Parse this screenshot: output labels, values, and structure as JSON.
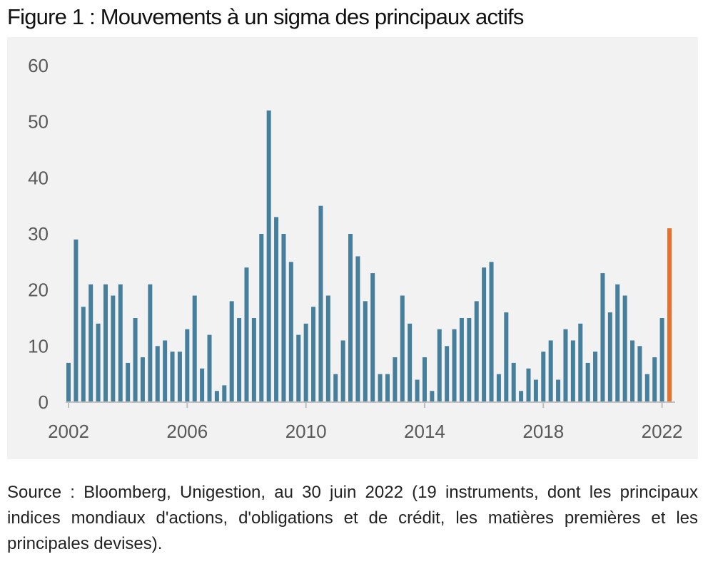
{
  "title": "Figure 1 : Mouvements à un sigma des principaux actifs",
  "source": "Source : Bloomberg, Unigestion, au 30 juin 2022 (19 instruments, dont les principaux indices mondiaux d'actions, d'obligations et de crédit, les matières premières et les principales devises).",
  "chart_data": {
    "type": "bar",
    "title": "Figure 1 : Mouvements à un sigma des principaux actifs",
    "xlabel": "",
    "ylabel": "",
    "ylim": [
      0,
      60
    ],
    "yticks": [
      0,
      10,
      20,
      30,
      40,
      50,
      60
    ],
    "xticks": [
      "2002",
      "2006",
      "2010",
      "2014",
      "2018",
      "2022"
    ],
    "xlim": [
      "2002-Q1",
      "2022-Q2"
    ],
    "grid": false,
    "legend": "none",
    "colors": {
      "default": "#457f9c",
      "highlight": "#e8702a",
      "axis": "#bfbfbf",
      "background": "#f2f2f2"
    },
    "highlight_category": "2022-Q2",
    "categories": [
      "2002-Q1",
      "2002-Q2",
      "2002-Q3",
      "2002-Q4",
      "2003-Q1",
      "2003-Q2",
      "2003-Q3",
      "2003-Q4",
      "2004-Q1",
      "2004-Q2",
      "2004-Q3",
      "2004-Q4",
      "2005-Q1",
      "2005-Q2",
      "2005-Q3",
      "2005-Q4",
      "2006-Q1",
      "2006-Q2",
      "2006-Q3",
      "2006-Q4",
      "2007-Q1",
      "2007-Q2",
      "2007-Q3",
      "2007-Q4",
      "2008-Q1",
      "2008-Q2",
      "2008-Q3",
      "2008-Q4",
      "2009-Q1",
      "2009-Q2",
      "2009-Q3",
      "2009-Q4",
      "2010-Q1",
      "2010-Q2",
      "2010-Q3",
      "2010-Q4",
      "2011-Q1",
      "2011-Q2",
      "2011-Q3",
      "2011-Q4",
      "2012-Q1",
      "2012-Q2",
      "2012-Q3",
      "2012-Q4",
      "2013-Q1",
      "2013-Q2",
      "2013-Q3",
      "2013-Q4",
      "2014-Q1",
      "2014-Q2",
      "2014-Q3",
      "2014-Q4",
      "2015-Q1",
      "2015-Q2",
      "2015-Q3",
      "2015-Q4",
      "2016-Q1",
      "2016-Q2",
      "2016-Q3",
      "2016-Q4",
      "2017-Q1",
      "2017-Q2",
      "2017-Q3",
      "2017-Q4",
      "2018-Q1",
      "2018-Q2",
      "2018-Q3",
      "2018-Q4",
      "2019-Q1",
      "2019-Q2",
      "2019-Q3",
      "2019-Q4",
      "2020-Q1",
      "2020-Q2",
      "2020-Q3",
      "2020-Q4",
      "2021-Q1",
      "2021-Q2",
      "2021-Q3",
      "2021-Q4",
      "2022-Q1",
      "2022-Q2"
    ],
    "values": [
      7,
      29,
      17,
      21,
      14,
      21,
      19,
      21,
      7,
      15,
      8,
      21,
      10,
      11,
      9,
      9,
      13,
      19,
      6,
      12,
      2,
      3,
      18,
      15,
      24,
      15,
      30,
      52,
      33,
      30,
      25,
      12,
      14,
      17,
      35,
      19,
      5,
      11,
      30,
      26,
      18,
      23,
      5,
      5,
      8,
      19,
      14,
      4,
      8,
      2,
      13,
      10,
      13,
      15,
      15,
      18,
      24,
      25,
      5,
      16,
      7,
      2,
      6,
      4,
      9,
      11,
      4,
      13,
      11,
      14,
      7,
      9,
      23,
      16,
      21,
      19,
      11,
      10,
      5,
      8,
      15,
      31
    ]
  }
}
